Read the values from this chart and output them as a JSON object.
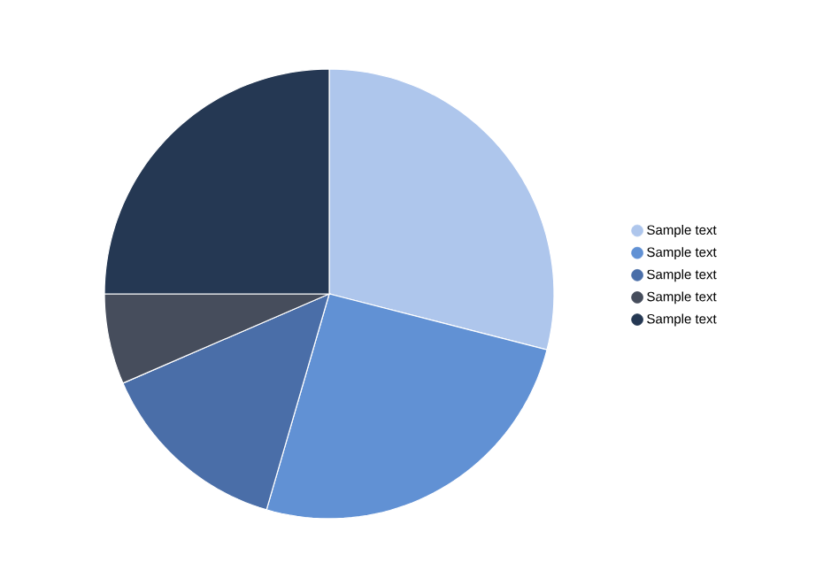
{
  "chart_data": {
    "type": "pie",
    "categories": [
      "Sample text",
      "Sample text",
      "Sample text",
      "Sample text",
      "Sample text"
    ],
    "values": [
      29,
      25.5,
      14,
      6.5,
      25
    ],
    "colors": [
      "#aec6ec",
      "#6191d4",
      "#4a6ea8",
      "#464d5c",
      "#253853"
    ],
    "legend": "right"
  }
}
